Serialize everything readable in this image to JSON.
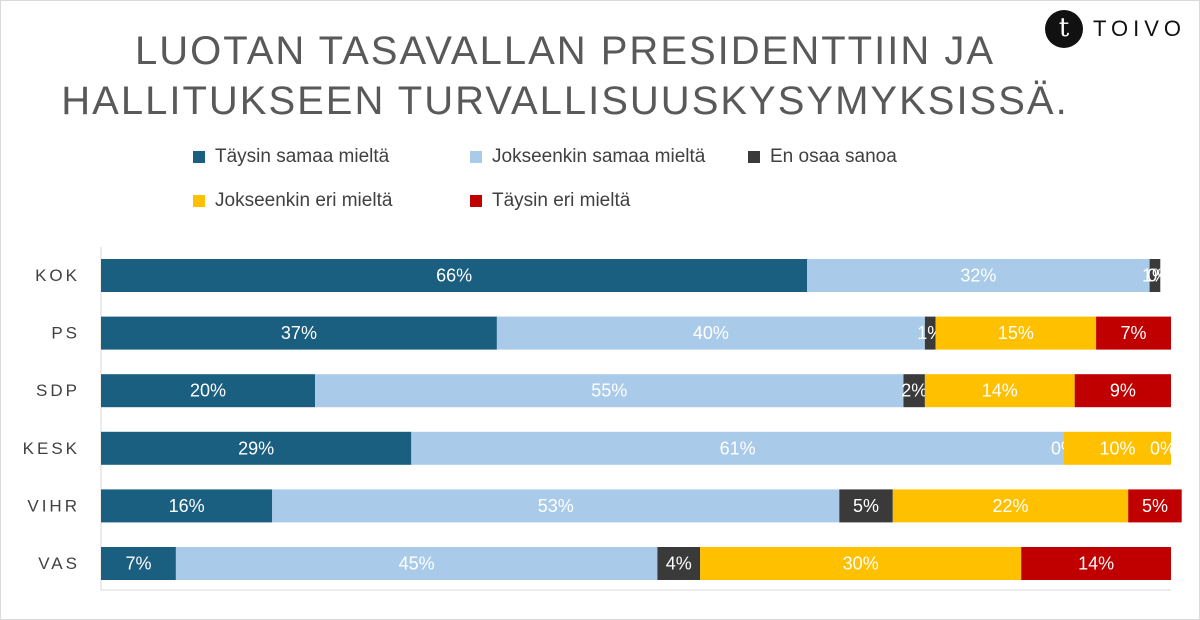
{
  "title_lines": [
    "LUOTAN TASAVALLAN PRESIDENTTIIN JA",
    "HALLITUKSEEN TURVALLISUUSKYSYMYKSISSÄ."
  ],
  "brand": {
    "mark": "t",
    "name": "TOIVO"
  },
  "colors": {
    "taysin_samaa": "#1a5e80",
    "jokseenkin_samaa": "#a9cbe9",
    "en_osaa": "#3a3a3a",
    "jokseenkin_eri": "#ffc000",
    "taysin_eri": "#c00000"
  },
  "chart_data": {
    "type": "bar",
    "orientation": "horizontal",
    "stacked": "100%",
    "categories": [
      "KOK",
      "PS",
      "SDP",
      "KESK",
      "VIHR",
      "VAS"
    ],
    "series": [
      {
        "name": "Täysin samaa mieltä",
        "color": "#1a5e80",
        "values": [
          66,
          37,
          20,
          29,
          16,
          7
        ],
        "labels": [
          "66%",
          "37%",
          "20%",
          "29%",
          "16%",
          "7%"
        ]
      },
      {
        "name": "Jokseenkin samaa mieltä",
        "color": "#a9cbe9",
        "values": [
          32,
          40,
          55,
          61,
          53,
          45
        ],
        "labels": [
          "32%",
          "40%",
          "55%",
          "61%",
          "53%",
          "45%"
        ]
      },
      {
        "name": "En osaa sanoa",
        "color": "#3a3a3a",
        "values": [
          1,
          1,
          2,
          0,
          5,
          4
        ],
        "labels": [
          "1%",
          "1%",
          "2%",
          "0%",
          "5%",
          "4%"
        ]
      },
      {
        "name": "Jokseenkin eri mieltä",
        "color": "#ffc000",
        "values": [
          0,
          15,
          14,
          10,
          22,
          30
        ],
        "labels": [
          "",
          "15%",
          "14%",
          "10%",
          "22%",
          "30%"
        ]
      },
      {
        "name": "Täysin eri mieltä",
        "color": "#c00000",
        "values": [
          0,
          7,
          9,
          0,
          5,
          14
        ],
        "labels": [
          "0%",
          "7%",
          "9%",
          "0%",
          "5%",
          "14%"
        ]
      }
    ],
    "xlim": [
      0,
      100
    ],
    "legend_position": "top",
    "grid": false
  }
}
